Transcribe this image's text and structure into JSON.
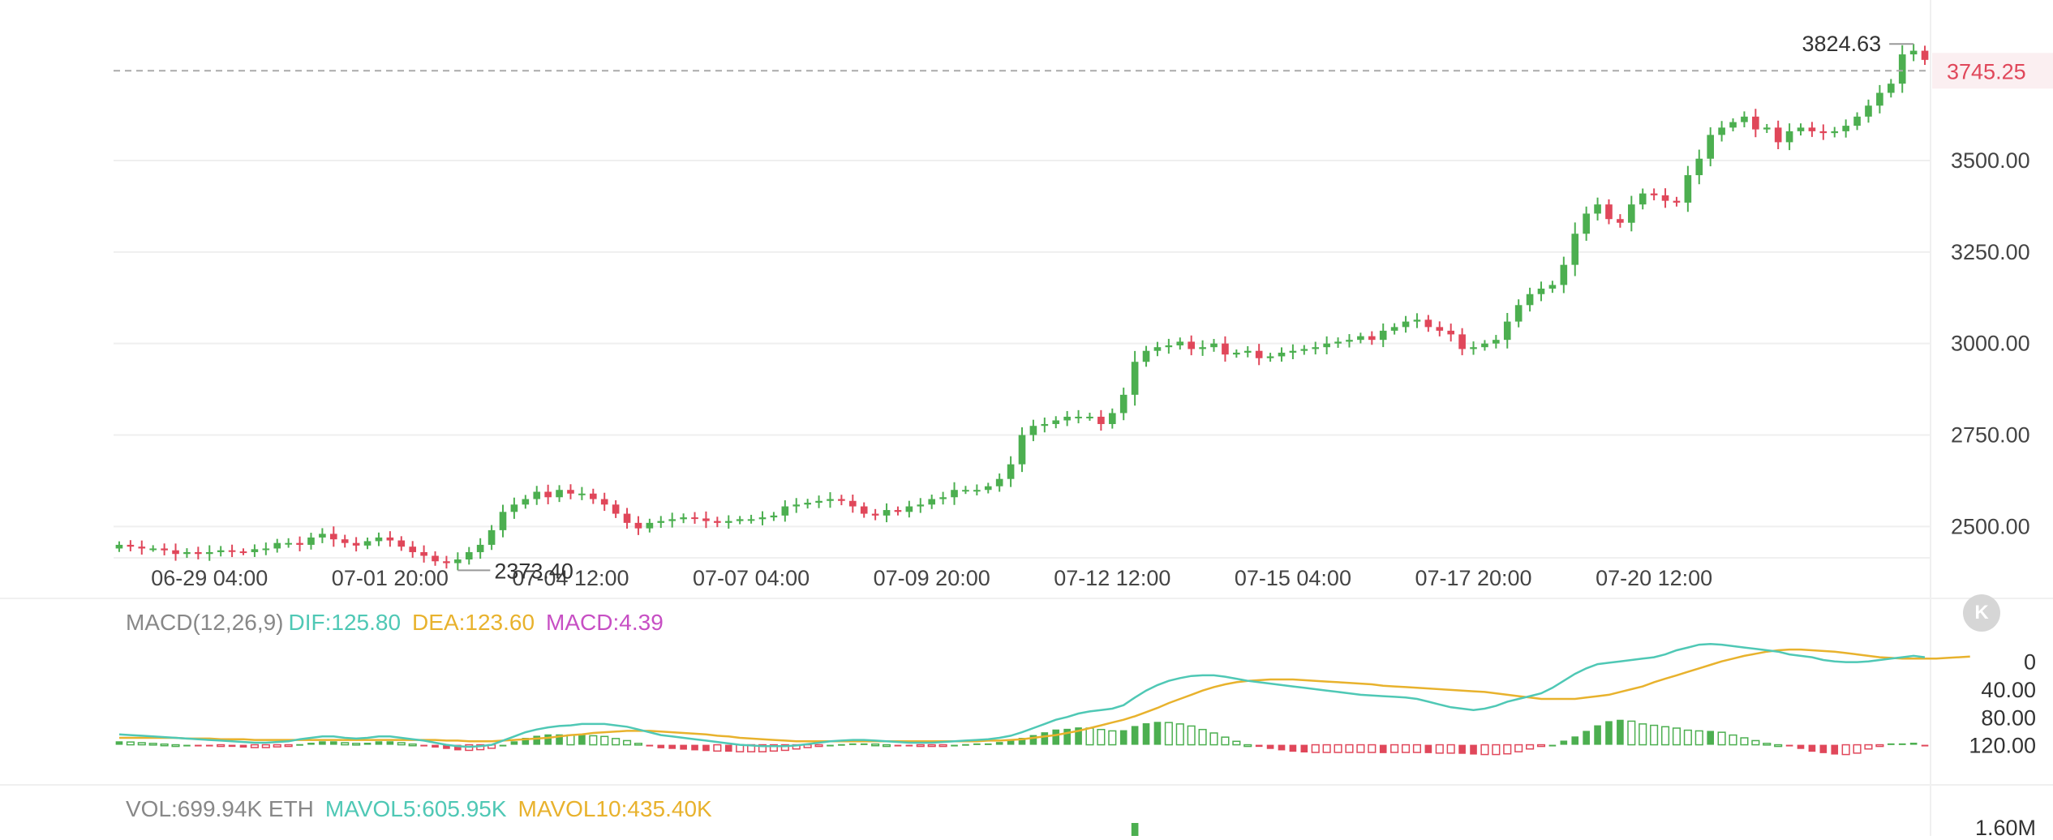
{
  "price_panel": {
    "current_price": "3745.25",
    "high_label": "3824.63",
    "low_label": "2373.40",
    "y_ticks": [
      "3500.00",
      "3250.00",
      "3000.00",
      "2750.00",
      "2500.00"
    ],
    "time_ticks": [
      "06-29 04:00",
      "07-01 20:00",
      "07-04 12:00",
      "07-07 04:00",
      "07-09 20:00",
      "07-12 12:00",
      "07-15 04:00",
      "07-17 20:00",
      "07-20 12:00"
    ]
  },
  "macd_panel": {
    "title": "MACD(12,26,9)",
    "dif": "DIF:125.80",
    "dea": "DEA:123.60",
    "macd": "MACD:4.39",
    "y_ticks": [
      "120.00",
      "80.00",
      "40.00",
      "0"
    ]
  },
  "vol_panel": {
    "title": "VOL:699.94K ETH",
    "mavol5": "MAVOL5:605.95K",
    "mavol10": "MAVOL10:435.40K",
    "y_tick": "1.60M"
  },
  "badge": {
    "label": "K",
    "icon": "kline-badge-icon"
  },
  "colors": {
    "up": "#4caf50",
    "down": "#e0475a",
    "dif": "#4fc8b5",
    "dea": "#e8b22d",
    "macd": "#c74fc4",
    "current_price": "#e0475a",
    "grid": "#efefef",
    "axis_text": "#444444"
  },
  "chart_data": [
    {
      "type": "candlestick",
      "x_start": "06-28 04:00",
      "interval": "4h",
      "ylim": [
        2410,
        3850
      ],
      "grid": true,
      "note_current_price_line": 3745.25,
      "closes": [
        2450,
        2445,
        2440,
        2440,
        2435,
        2425,
        2430,
        2425,
        2430,
        2435,
        2432,
        2430,
        2438,
        2440,
        2455,
        2455,
        2450,
        2470,
        2480,
        2465,
        2455,
        2448,
        2460,
        2470,
        2462,
        2445,
        2430,
        2420,
        2405,
        2400,
        2410,
        2430,
        2450,
        2490,
        2540,
        2560,
        2575,
        2595,
        2580,
        2600,
        2590,
        2590,
        2575,
        2560,
        2535,
        2510,
        2495,
        2510,
        2515,
        2520,
        2525,
        2522,
        2515,
        2510,
        2515,
        2520,
        2520,
        2525,
        2530,
        2555,
        2560,
        2565,
        2570,
        2575,
        2570,
        2555,
        2535,
        2530,
        2545,
        2540,
        2555,
        2560,
        2575,
        2580,
        2600,
        2600,
        2600,
        2610,
        2630,
        2670,
        2750,
        2775,
        2780,
        2790,
        2800,
        2800,
        2800,
        2780,
        2810,
        2860,
        2950,
        2980,
        2990,
        2995,
        3005,
        2985,
        2990,
        3000,
        2970,
        2975,
        2980,
        2960,
        2965,
        2975,
        2980,
        2985,
        2990,
        3000,
        3005,
        3010,
        3020,
        3010,
        3035,
        3045,
        3060,
        3065,
        3045,
        3035,
        3025,
        2985,
        2990,
        3000,
        3010,
        3060,
        3105,
        3135,
        3150,
        3160,
        3215,
        3300,
        3355,
        3380,
        3340,
        3330,
        3380,
        3410,
        3405,
        3390,
        3385,
        3460,
        3505,
        3570,
        3590,
        3605,
        3620,
        3585,
        3590,
        3550,
        3580,
        3590,
        3580,
        3575,
        3580,
        3595,
        3620,
        3650,
        3685,
        3710,
        3790,
        3800,
        3775
      ],
      "x_ticks": [
        "06-29 04:00",
        "07-01 20:00",
        "07-04 12:00",
        "07-07 04:00",
        "07-09 20:00",
        "07-12 12:00",
        "07-15 04:00",
        "07-17 20:00",
        "07-20 12:00"
      ],
      "y_ticks": [
        2500,
        2750,
        3000,
        3250,
        3500
      ],
      "annotations": [
        {
          "label": "3824.63",
          "type": "high"
        },
        {
          "label": "2373.40",
          "type": "low"
        },
        {
          "label": "3745.25",
          "type": "current"
        }
      ]
    },
    {
      "type": "line+bar",
      "title": "MACD(12,26,9)",
      "ylim": [
        -25,
        150
      ],
      "y_ticks": [
        0,
        40,
        80,
        120
      ],
      "series": [
        {
          "name": "DIF",
          "values": [
            15,
            14,
            13,
            12,
            11,
            10,
            9,
            8,
            7,
            6,
            5,
            4,
            3,
            3,
            4,
            5,
            8,
            10,
            12,
            12,
            10,
            9,
            10,
            12,
            12,
            10,
            8,
            6,
            3,
            0,
            -2,
            -3,
            -2,
            0,
            6,
            12,
            18,
            22,
            25,
            27,
            28,
            30,
            30,
            30,
            28,
            26,
            22,
            18,
            14,
            12,
            10,
            8,
            6,
            4,
            2,
            0,
            -1,
            -2,
            -2,
            -2,
            -1,
            1,
            3,
            5,
            6,
            7,
            7,
            6,
            5,
            4,
            3,
            3,
            3,
            4,
            5,
            6,
            7,
            8,
            10,
            13,
            18,
            24,
            30,
            36,
            40,
            45,
            48,
            50,
            52,
            57,
            68,
            78,
            86,
            92,
            96,
            99,
            100,
            100,
            98,
            95,
            92,
            90,
            88,
            86,
            84,
            82,
            80,
            78,
            76,
            74,
            72,
            71,
            70,
            69,
            68,
            66,
            62,
            58,
            54,
            52,
            50,
            52,
            56,
            62,
            66,
            70,
            74,
            82,
            92,
            102,
            110,
            116,
            118,
            120,
            122,
            124,
            126,
            130,
            136,
            140,
            144,
            145,
            144,
            142,
            140,
            138,
            136,
            134,
            130,
            128,
            126,
            122,
            120,
            119,
            119,
            120,
            122,
            124,
            126,
            128,
            126
          ]
        },
        {
          "name": "DEA",
          "values": [
            10,
            10,
            10,
            10,
            10,
            10,
            9,
            9,
            9,
            8,
            8,
            8,
            7,
            7,
            7,
            7,
            7,
            7,
            7,
            7,
            7,
            7,
            7,
            7,
            7,
            7,
            7,
            7,
            7,
            6,
            6,
            5,
            5,
            5,
            6,
            7,
            8,
            9,
            10,
            12,
            14,
            15,
            17,
            18,
            19,
            20,
            20,
            20,
            19,
            18,
            17,
            16,
            15,
            13,
            12,
            10,
            9,
            8,
            7,
            6,
            5,
            5,
            5,
            5,
            5,
            5,
            5,
            5,
            5,
            5,
            5,
            5,
            5,
            5,
            5,
            5,
            5,
            6,
            6,
            7,
            8,
            10,
            12,
            14,
            17,
            20,
            24,
            28,
            32,
            36,
            41,
            47,
            53,
            60,
            66,
            72,
            78,
            83,
            87,
            90,
            92,
            93,
            94,
            94,
            94,
            93,
            92,
            91,
            90,
            89,
            88,
            87,
            85,
            84,
            83,
            82,
            81,
            80,
            79,
            78,
            77,
            76,
            74,
            72,
            70,
            68,
            66,
            66,
            66,
            66,
            68,
            70,
            72,
            76,
            80,
            84,
            90,
            95,
            100,
            105,
            110,
            115,
            120,
            124,
            128,
            131,
            134,
            136,
            137,
            137,
            136,
            135,
            134,
            132,
            130,
            128,
            126,
            125,
            124,
            124,
            124,
            124,
            125,
            126,
            127
          ]
        },
        {
          "name": "MACD",
          "values": [
            5,
            4,
            3,
            2,
            1,
            0,
            0,
            -1,
            -2,
            -2,
            -3,
            -4,
            -4,
            -4,
            -3,
            -2,
            1,
            3,
            5,
            5,
            3,
            2,
            3,
            5,
            5,
            3,
            1,
            -1,
            -4,
            -6,
            -8,
            -8,
            -7,
            -5,
            0,
            5,
            10,
            13,
            15,
            15,
            14,
            15,
            13,
            12,
            9,
            6,
            2,
            -2,
            -5,
            -6,
            -7,
            -8,
            -9,
            -9,
            -10,
            -10,
            -10,
            -10,
            -9,
            -8,
            -6,
            -4,
            -2,
            0,
            1,
            2,
            2,
            1,
            0,
            -1,
            -2,
            -2,
            -2,
            -1,
            0,
            1,
            2,
            2,
            4,
            6,
            10,
            14,
            18,
            22,
            23,
            25,
            24,
            22,
            20,
            21,
            27,
            31,
            33,
            32,
            30,
            27,
            22,
            17,
            11,
            5,
            0,
            -3,
            -6,
            -8,
            -10,
            -11,
            -11,
            -11,
            -11,
            -11,
            -11,
            -11,
            -12,
            -11,
            -11,
            -11,
            -12,
            -12,
            -12,
            -13,
            -14,
            -14,
            -14,
            -13,
            -10,
            -6,
            -2,
            0,
            6,
            12,
            20,
            28,
            34,
            36,
            34,
            30,
            28,
            26,
            24,
            21,
            20,
            20,
            18,
            14,
            10,
            6,
            2,
            0,
            -2,
            -6,
            -10,
            -12,
            -14,
            -14,
            -12,
            -6,
            -2,
            2,
            2,
            3,
            -1
          ]
        }
      ]
    },
    {
      "type": "bar",
      "title": "VOL:699.94K ETH",
      "y_ticks": [
        "1.60M"
      ],
      "values": [
        "699.94K"
      ],
      "series": [
        {
          "name": "MAVOL5",
          "values": [
            "605.95K"
          ]
        },
        {
          "name": "MAVOL10",
          "values": [
            "435.40K"
          ]
        }
      ]
    }
  ]
}
